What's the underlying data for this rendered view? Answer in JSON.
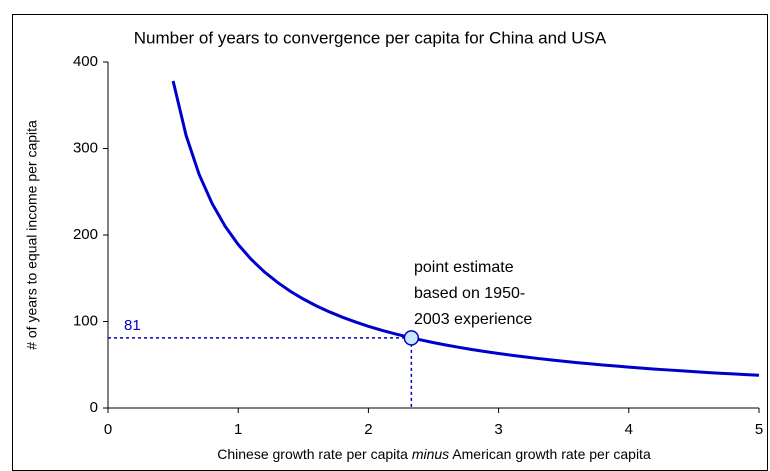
{
  "chart_data": {
    "type": "line",
    "title": "Number of years to convergence per capita for China and USA",
    "x_label": [
      "Chinese growth rate per capita ",
      "minus",
      " American growth rate per capita"
    ],
    "y_label": "# of years to equal income per capita",
    "x": [
      0.5,
      0.6,
      0.7,
      0.8,
      0.9,
      1.0,
      1.1,
      1.2,
      1.3,
      1.4,
      1.5,
      1.6,
      1.7,
      1.8,
      1.9,
      2.0,
      2.1,
      2.2,
      2.3,
      2.4,
      2.5,
      2.6,
      2.7,
      2.8,
      2.9,
      3.0,
      3.1,
      3.2,
      3.3,
      3.4,
      3.5,
      3.6,
      3.7,
      3.8,
      3.9,
      4.0,
      4.1,
      4.2,
      4.3,
      4.4,
      4.5,
      4.6,
      4.7,
      4.8,
      4.9,
      5.0
    ],
    "series": [
      {
        "color": "#0000cc",
        "values": [
          378,
          315,
          270,
          236.3,
          210,
          189,
          171.8,
          157.5,
          145.4,
          135,
          126,
          118.1,
          111.2,
          105,
          99.5,
          94.5,
          90,
          85.9,
          82.2,
          78.8,
          75.6,
          72.7,
          70,
          67.5,
          65.2,
          63,
          61,
          59.1,
          57.3,
          55.6,
          54,
          52.5,
          51.1,
          49.7,
          48.5,
          47.3,
          46.1,
          45,
          44,
          43,
          42,
          41.1,
          40.2,
          39.4,
          38.6,
          37.8
        ]
      }
    ],
    "point": {
      "x": 2.33,
      "y": 81,
      "color": "#cce8ff",
      "annotation": [
        "point estimate",
        "based on 1950-",
        "2003 experience"
      ]
    },
    "xlim": [
      0,
      5
    ],
    "xticks": [
      0,
      1,
      2,
      3,
      4,
      5
    ],
    "ylim": [
      0,
      400
    ],
    "yticks": [
      0,
      100,
      200,
      300,
      400
    ],
    "grid": false
  }
}
